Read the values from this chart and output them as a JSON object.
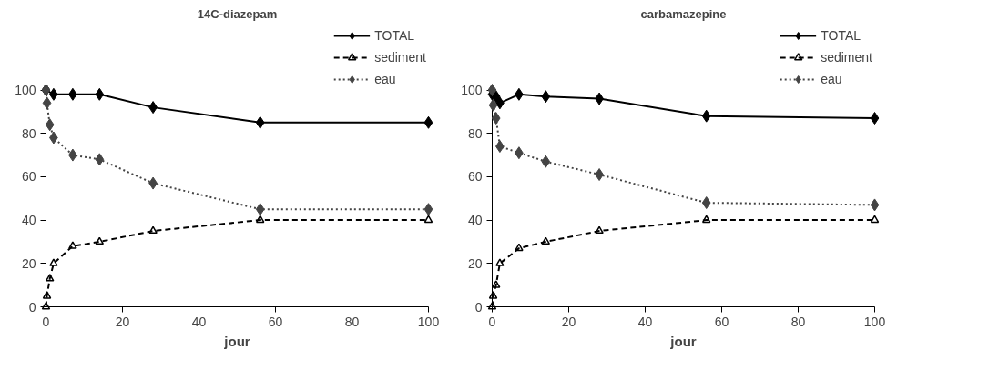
{
  "chart_data": [
    {
      "type": "line",
      "title": "14C-diazepam",
      "xlabel": "jour",
      "xlim": [
        0,
        100
      ],
      "ylim": [
        0,
        100
      ],
      "xticks": [
        0,
        20,
        40,
        60,
        80,
        100
      ],
      "yticks": [
        0,
        20,
        40,
        60,
        80,
        100
      ],
      "grid": false,
      "legend": "top right",
      "series": [
        {
          "name": "TOTAL",
          "color": "#000000",
          "marker": "diamond",
          "line_style": "solid",
          "x": [
            0,
            2,
            7,
            14,
            28,
            56,
            100
          ],
          "values": [
            100,
            98,
            98,
            98,
            92,
            85,
            85
          ]
        },
        {
          "name": "sediment",
          "color": "#000000",
          "marker": "triangle",
          "line_style": "dashed",
          "x": [
            0,
            0.25,
            1,
            2,
            7,
            14,
            28,
            56,
            100
          ],
          "values": [
            0,
            5,
            13,
            20,
            28,
            30,
            35,
            40,
            40
          ]
        },
        {
          "name": "eau",
          "color": "#444444",
          "marker": "diamond",
          "line_style": "dotted",
          "x": [
            0,
            0.25,
            1,
            2,
            7,
            14,
            28,
            56,
            100
          ],
          "values": [
            100,
            94,
            84,
            78,
            70,
            68,
            57,
            45,
            45
          ]
        }
      ]
    },
    {
      "type": "line",
      "title": "carbamazepine",
      "xlabel": "jour",
      "xlim": [
        0,
        100
      ],
      "ylim": [
        0,
        100
      ],
      "xticks": [
        0,
        20,
        40,
        60,
        80,
        100
      ],
      "yticks": [
        0,
        20,
        40,
        60,
        80,
        100
      ],
      "grid": false,
      "legend": "top right",
      "series": [
        {
          "name": "TOTAL",
          "color": "#000000",
          "marker": "diamond",
          "line_style": "solid",
          "x": [
            0,
            1,
            2,
            7,
            14,
            28,
            56,
            100
          ],
          "values": [
            98,
            97,
            94,
            98,
            97,
            96,
            88,
            87
          ]
        },
        {
          "name": "sediment",
          "color": "#000000",
          "marker": "triangle",
          "line_style": "dashed",
          "x": [
            0,
            0.25,
            1,
            2,
            7,
            14,
            28,
            56,
            100
          ],
          "values": [
            0,
            5,
            10,
            20,
            27,
            30,
            35,
            40,
            40
          ]
        },
        {
          "name": "eau",
          "color": "#444444",
          "marker": "diamond",
          "line_style": "dotted",
          "x": [
            0,
            0.25,
            1,
            2,
            7,
            14,
            28,
            56,
            100
          ],
          "values": [
            100,
            93,
            87,
            74,
            71,
            67,
            61,
            48,
            47
          ]
        }
      ]
    }
  ]
}
